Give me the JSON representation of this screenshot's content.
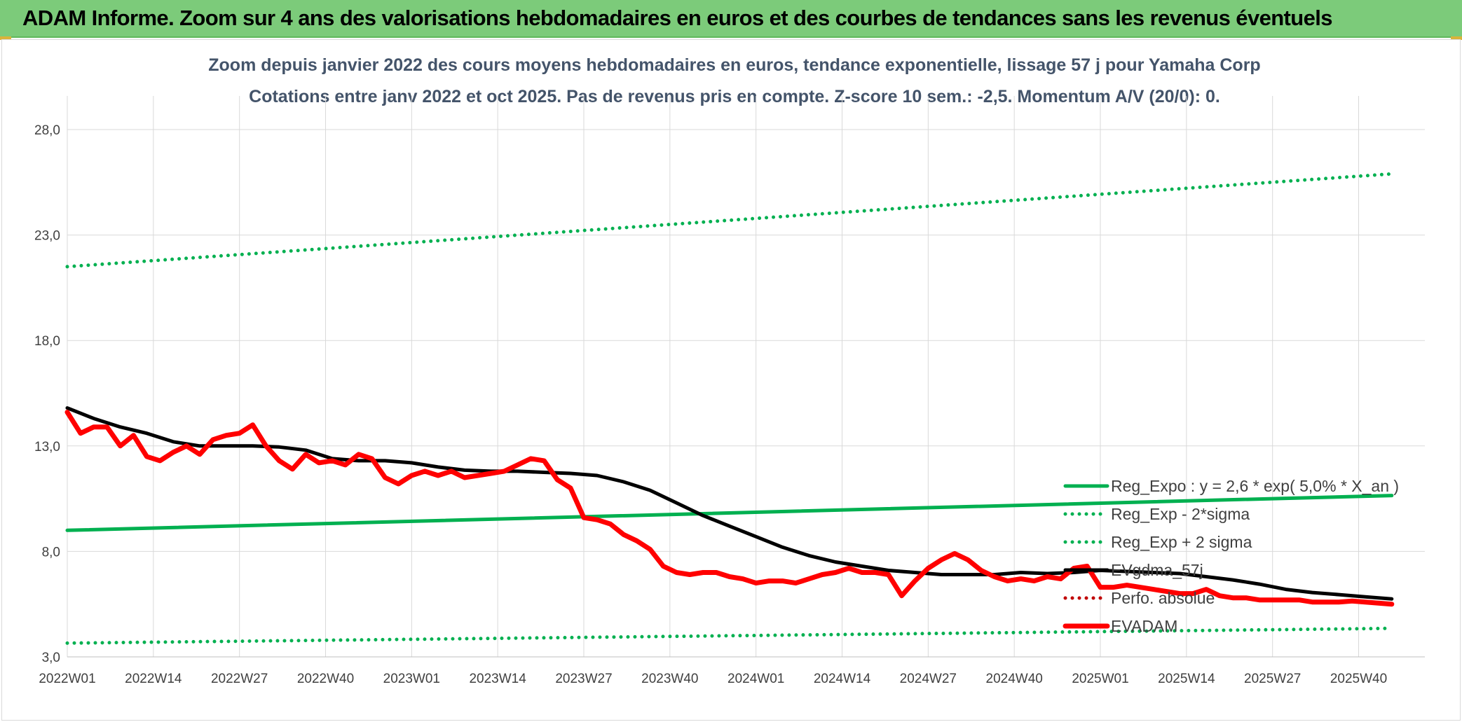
{
  "header": {
    "title": "ADAM Informe. Zoom sur 4 ans des valorisations hebdomadaires en euros et des courbes de tendances sans les revenus éventuels"
  },
  "colors": {
    "banner": "#7ccb7a",
    "trend": "#00b050",
    "price": "#ff0000",
    "smooth": "#000000",
    "perf": "#c00000",
    "title_text": "#44546a"
  },
  "chart_data": {
    "type": "line",
    "title": "Zoom depuis janvier 2022 des cours moyens hebdomadaires en euros, tendance exponentielle, lissage 57 j pour Yamaha Corp",
    "subtitle": "Cotations entre janv 2022 et oct 2025. Pas de revenus pris en compte. Z-score 10 sem.: -2,5. Momentum A/V (20/0): 0.",
    "xlabel": "",
    "ylabel": "",
    "ylim": [
      3,
      28
    ],
    "y_ticks": [
      "3,0",
      "8,0",
      "13,0",
      "18,0",
      "23,0",
      "28,0"
    ],
    "x_ticks": [
      "2022W01",
      "2022W14",
      "2022W27",
      "2022W40",
      "2023W01",
      "2023W14",
      "2023W27",
      "2023W40",
      "2024W01",
      "2024W14",
      "2024W27",
      "2024W40",
      "2025W01",
      "2025W14",
      "2025W27",
      "2025W40"
    ],
    "grid": true,
    "legend_position": "bottom-right",
    "series": [
      {
        "name": "Reg_Expo : y = 2,6 * exp( 5,0% *  X_an )",
        "style": "solid",
        "color": "#00b050",
        "x": [
          0,
          200
        ],
        "y": [
          9.0,
          10.65
        ]
      },
      {
        "name": "Reg_Exp - 2*sigma",
        "style": "dotted",
        "color": "#00b050",
        "x": [
          0,
          200
        ],
        "y": [
          3.65,
          4.35
        ]
      },
      {
        "name": "Reg_Exp + 2 sigma",
        "style": "dotted",
        "color": "#00b050",
        "x": [
          0,
          200
        ],
        "y": [
          21.5,
          25.9
        ]
      },
      {
        "name": "EVgdma_57j",
        "style": "solid",
        "color": "#000000",
        "x": [
          0,
          4,
          8,
          12,
          16,
          20,
          24,
          28,
          32,
          36,
          40,
          44,
          48,
          52,
          56,
          60,
          64,
          68,
          72,
          76,
          80,
          84,
          88,
          92,
          96,
          100,
          104,
          108,
          112,
          116,
          120,
          124,
          128,
          132,
          136,
          140,
          144,
          148,
          152,
          156,
          160,
          164,
          168,
          172,
          176,
          180,
          184,
          188,
          192,
          196,
          200
        ],
        "y": [
          14.8,
          14.3,
          13.9,
          13.6,
          13.2,
          13.0,
          13.0,
          13.0,
          12.95,
          12.8,
          12.4,
          12.3,
          12.3,
          12.2,
          12.0,
          11.85,
          11.8,
          11.8,
          11.75,
          11.7,
          11.6,
          11.3,
          10.9,
          10.3,
          9.7,
          9.2,
          8.7,
          8.2,
          7.8,
          7.5,
          7.3,
          7.1,
          7.0,
          6.9,
          6.9,
          6.9,
          7.0,
          6.95,
          7.0,
          7.1,
          7.05,
          7.0,
          6.95,
          6.8,
          6.65,
          6.45,
          6.2,
          6.05,
          5.95,
          5.85,
          5.75
        ]
      },
      {
        "name": "Perfo. absolue",
        "style": "dotted",
        "color": "#c00000",
        "x": [],
        "y": []
      },
      {
        "name": "EVADAM",
        "style": "solid-thick",
        "color": "#ff0000",
        "x": [
          0,
          2,
          4,
          6,
          8,
          10,
          12,
          14,
          16,
          18,
          20,
          22,
          24,
          26,
          28,
          30,
          32,
          34,
          36,
          38,
          40,
          42,
          44,
          46,
          48,
          50,
          52,
          54,
          56,
          58,
          60,
          62,
          64,
          66,
          68,
          70,
          72,
          74,
          76,
          78,
          80,
          82,
          84,
          86,
          88,
          90,
          92,
          94,
          96,
          98,
          100,
          102,
          104,
          106,
          108,
          110,
          112,
          114,
          116,
          118,
          120,
          122,
          124,
          126,
          128,
          130,
          132,
          134,
          136,
          138,
          140,
          142,
          144,
          146,
          148,
          150,
          152,
          154,
          156,
          158,
          160,
          162,
          164,
          166,
          168,
          170,
          172,
          174,
          176,
          178,
          180,
          182,
          184,
          186,
          188,
          190,
          192,
          194,
          196,
          198,
          200
        ],
        "y": [
          14.6,
          13.6,
          13.9,
          13.9,
          13.0,
          13.5,
          12.5,
          12.3,
          12.7,
          13.0,
          12.6,
          13.3,
          13.5,
          13.6,
          14.0,
          13.0,
          12.3,
          11.9,
          12.6,
          12.2,
          12.3,
          12.1,
          12.6,
          12.4,
          11.5,
          11.2,
          11.6,
          11.8,
          11.6,
          11.8,
          11.5,
          11.6,
          11.7,
          11.8,
          12.1,
          12.4,
          12.3,
          11.4,
          11.0,
          9.6,
          9.5,
          9.3,
          8.8,
          8.5,
          8.1,
          7.3,
          7.0,
          6.9,
          7.0,
          7.0,
          6.8,
          6.7,
          6.5,
          6.6,
          6.6,
          6.5,
          6.7,
          6.9,
          7.0,
          7.2,
          7.0,
          7.0,
          6.9,
          5.9,
          6.6,
          7.2,
          7.6,
          7.9,
          7.6,
          7.1,
          6.8,
          6.6,
          6.7,
          6.6,
          6.8,
          6.7,
          7.2,
          7.3,
          6.3,
          6.3,
          6.4,
          6.3,
          6.2,
          6.1,
          6.0,
          6.0,
          6.2,
          5.9,
          5.8,
          5.8,
          5.7,
          5.7,
          5.7,
          5.7,
          5.6,
          5.6,
          5.6,
          5.65,
          5.6,
          5.55,
          5.5
        ]
      }
    ]
  }
}
